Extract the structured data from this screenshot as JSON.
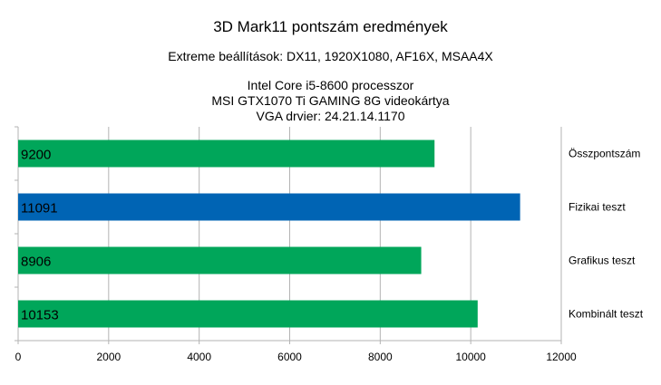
{
  "chart_data": {
    "type": "bar",
    "orientation": "horizontal",
    "title": "3D Mark11 pontszám eredmények",
    "subtitle": "Extreme beállítások: DX11, 1920X1080, AF16X, MSAA4X",
    "info_lines": [
      "Intel Core i5-8600 processzor",
      "MSI GTX1070 Ti GAMING 8G videokártya",
      "VGA drvier: 24.21.14.1170"
    ],
    "categories": [
      "Összpontszám",
      "Fizikai teszt",
      "Grafikus teszt",
      "Kombinált teszt"
    ],
    "values": [
      9200,
      11091,
      8906,
      10153
    ],
    "value_labels": [
      "9200",
      "11091",
      "8906",
      "10153"
    ],
    "bar_colors": [
      "#00a65a",
      "#0064b4",
      "#00a65a",
      "#00a65a"
    ],
    "xlim": [
      0,
      12000
    ],
    "x_ticks": [
      0,
      2000,
      4000,
      6000,
      8000,
      10000,
      12000
    ],
    "x_tick_labels": [
      "0",
      "2000",
      "4000",
      "6000",
      "8000",
      "10000",
      "12000"
    ],
    "category_label_side": "right",
    "grid": true,
    "grid_color": "#b3b3b3"
  }
}
